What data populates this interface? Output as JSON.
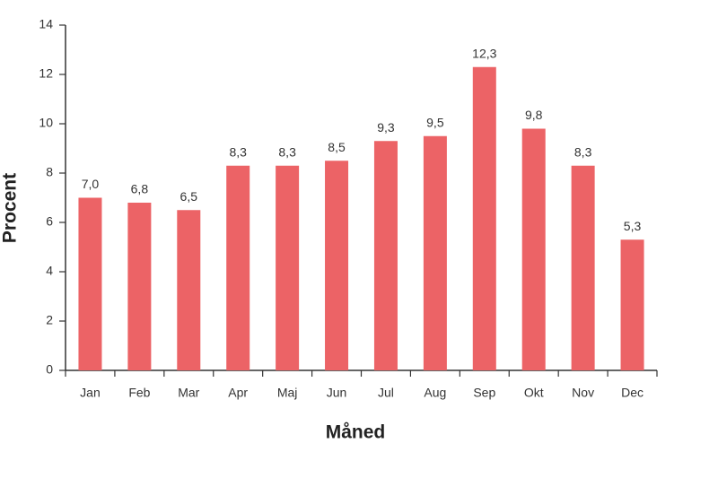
{
  "chart_data": {
    "type": "bar",
    "x_label": "Måned",
    "y_label": "Procent",
    "categories": [
      "Jan",
      "Feb",
      "Mar",
      "Apr",
      "Maj",
      "Jun",
      "Jul",
      "Aug",
      "Sep",
      "Okt",
      "Nov",
      "Dec"
    ],
    "values": [
      7.0,
      6.8,
      6.5,
      8.3,
      8.3,
      8.5,
      9.3,
      9.5,
      12.3,
      9.8,
      8.3,
      5.3
    ],
    "value_labels": [
      "7,0",
      "6,8",
      "6,5",
      "8,3",
      "8,3",
      "8,5",
      "9,3",
      "9,5",
      "12,3",
      "9,8",
      "8,3",
      "5,3"
    ],
    "color": "#ec6366",
    "ylim": [
      0,
      14
    ],
    "yticks": [
      0,
      2,
      4,
      6,
      8,
      10,
      12,
      14
    ],
    "grid": false
  }
}
